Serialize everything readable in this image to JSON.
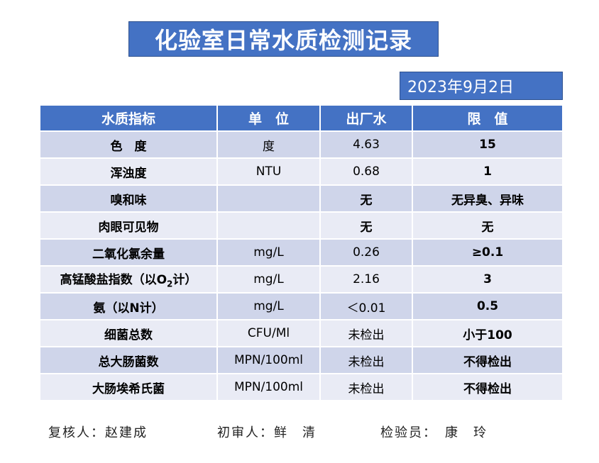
{
  "title": "化验室日常水质检测记录",
  "date": "2023年9月2日",
  "table": {
    "headers": [
      "水质指标",
      "单　位",
      "出厂水",
      "限　值"
    ],
    "rows": [
      {
        "name": "色　度",
        "unit": "度",
        "value": "4.63",
        "limit": "15"
      },
      {
        "name": "浑浊度",
        "unit": "NTU",
        "value": "0.68",
        "limit": "1"
      },
      {
        "name": "嗅和味",
        "unit": "",
        "value": "无",
        "limit": "无异臭、异味"
      },
      {
        "name": "肉眼可见物",
        "unit": "",
        "value": "无",
        "limit": "无"
      },
      {
        "name": "二氧化氯余量",
        "unit": "mg/L",
        "value": "0.26",
        "limit": "≥0.1"
      },
      {
        "name_prefix": "高锰酸盐指数（以O",
        "name_sub": "2",
        "name_suffix": "计）",
        "unit": "mg/L",
        "value": "2.16",
        "limit": "3"
      },
      {
        "name": "氨（以N计）",
        "unit": "mg/L",
        "value": "＜0.01",
        "limit": "0.5"
      },
      {
        "name": "细菌总数",
        "unit": "CFU/Ml",
        "value": "未检出",
        "limit": "小于100"
      },
      {
        "name": "总大肠菌数",
        "unit": "MPN/100ml",
        "value": "未检出",
        "limit": "不得检出"
      },
      {
        "name": "大肠埃希氏菌",
        "unit": "MPN/100ml",
        "value": "未检出",
        "limit": "不得检出"
      }
    ]
  },
  "footer": {
    "reviewer": "复核人：赵建成",
    "first_reviewer": "初审人：鲜　清",
    "inspector": "检验员：　康　玲"
  }
}
